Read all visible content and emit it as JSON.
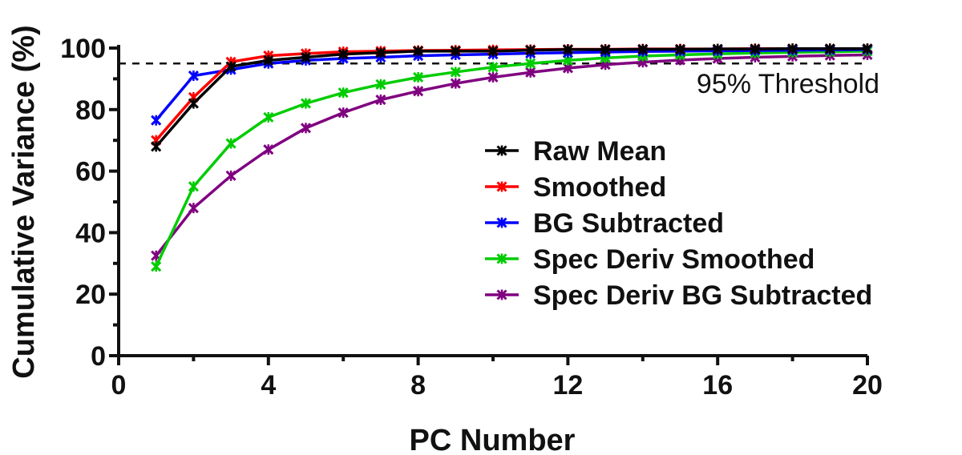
{
  "chart_data": {
    "type": "line",
    "xlabel": "PC Number",
    "ylabel": "Cumulative Variance (%)",
    "xlim": [
      0,
      20
    ],
    "ylim": [
      0,
      100
    ],
    "xticks": [
      "0",
      "4",
      "8",
      "12",
      "16",
      "20"
    ],
    "yticks": [
      "0",
      "20",
      "40",
      "60",
      "80",
      "100"
    ],
    "grid": false,
    "legend_position": "center-right",
    "threshold": {
      "value": 95,
      "label": "95% Threshold"
    },
    "x": [
      1,
      2,
      3,
      4,
      5,
      6,
      7,
      8,
      9,
      10,
      11,
      12,
      13,
      14,
      15,
      16,
      17,
      18,
      19,
      20
    ],
    "series": [
      {
        "name": "Raw Mean",
        "color": "#000000",
        "values": [
          68,
          82,
          94,
          96,
          97,
          98,
          98.5,
          99,
          99,
          99,
          99.3,
          99.5,
          99.5,
          99.6,
          99.6,
          99.7,
          99.7,
          99.8,
          99.8,
          99.8
        ]
      },
      {
        "name": "Smoothed",
        "color": "#ff0000",
        "values": [
          70,
          84,
          95.5,
          97.5,
          98.2,
          98.8,
          99,
          99.2,
          99.3,
          99.4,
          99.5,
          99.6,
          99.6,
          99.7,
          99.7,
          99.7,
          99.8,
          99.8,
          99.8,
          99.8
        ]
      },
      {
        "name": "BG Subtracted",
        "color": "#0000ff",
        "values": [
          76.5,
          91,
          93,
          95,
          96,
          96.6,
          97,
          97.5,
          97.8,
          98,
          98.3,
          98.5,
          98.7,
          98.9,
          99,
          99.1,
          99.2,
          99.3,
          99.4,
          99.5
        ]
      },
      {
        "name": "Spec Deriv Smoothed",
        "color": "#00cc00",
        "values": [
          29,
          55,
          69,
          77.5,
          82,
          85.5,
          88.2,
          90.5,
          92.2,
          93.8,
          95,
          96,
          96.8,
          97.4,
          97.8,
          98.1,
          98.4,
          98.6,
          98.8,
          99
        ]
      },
      {
        "name": "Spec Deriv BG Subtracted",
        "color": "#800080",
        "values": [
          32.5,
          48,
          58.5,
          67,
          74,
          79,
          83.2,
          86,
          88.5,
          90.5,
          92.1,
          93.5,
          94.6,
          95.4,
          96.1,
          96.6,
          97,
          97.3,
          97.6,
          97.8
        ]
      }
    ]
  }
}
